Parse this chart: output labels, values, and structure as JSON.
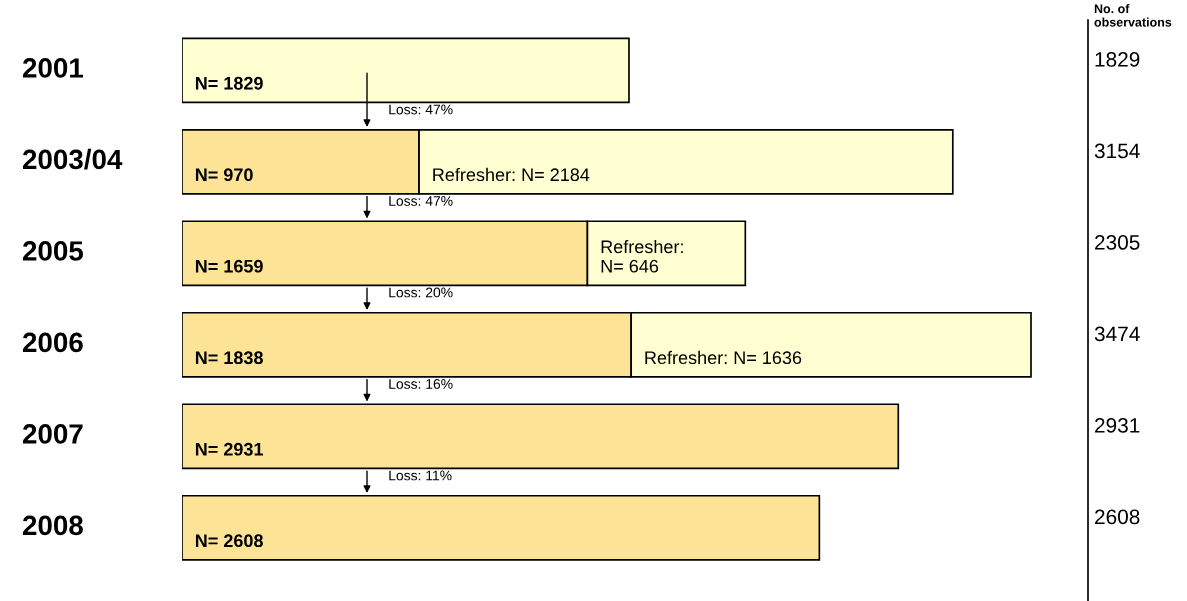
{
  "chart_data": {
    "type": "bar",
    "orientation": "horizontal",
    "stacked": true,
    "categories": [
      "2001",
      "2003/04",
      "2005",
      "2006",
      "2007",
      "2008"
    ],
    "series": [
      {
        "color": "#fde396",
        "colors": [
          "#ffffd2",
          "#fde396",
          "#fde396",
          "#fde396",
          "#fde396",
          "#fde396"
        ],
        "values": [
          1829,
          970,
          1659,
          1838,
          2931,
          2608
        ],
        "value_labels": [
          "N= 1829",
          "N= 970",
          "N= 1659",
          "N= 1838",
          "N= 2931",
          "N= 2608"
        ]
      },
      {
        "color": "#ffffd2",
        "values": [
          null,
          2184,
          646,
          1636,
          null,
          null
        ],
        "value_labels": [
          null,
          "Refresher: N= 2184",
          "Refresher: N= 646",
          "Refresher: N= 1636",
          null,
          null
        ]
      }
    ],
    "annotations": [
      "No. of observations",
      "Loss: 47%",
      "Loss: 47%",
      "Loss: 20%",
      "Loss: 16%",
      "Loss: 11%",
      "1829",
      "3154",
      "2305",
      "3474",
      "2931",
      "2608"
    ],
    "legend": false
  }
}
